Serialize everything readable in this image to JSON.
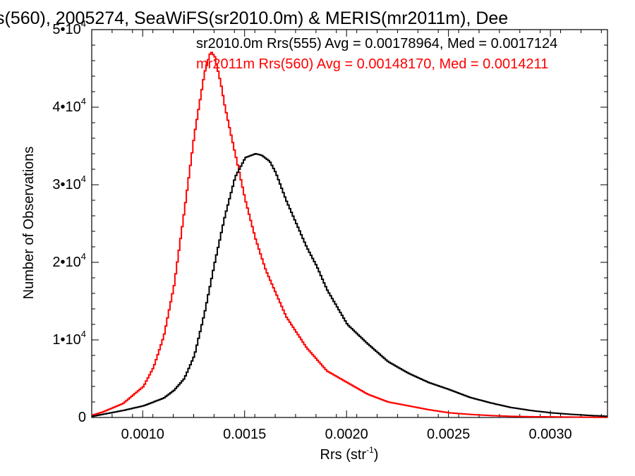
{
  "chart_data": {
    "type": "line",
    "title": "s(560), 2005274, SeaWiFS(sr2010.0m) & MERIS(mr2011m), Dee",
    "xlabel": "Rrs (str",
    "xlabel_sup": "-1",
    "xlabel_close": ")",
    "ylabel": "Number of Observations",
    "xlim": [
      0.00075,
      0.00328
    ],
    "ylim": [
      0,
      50000
    ],
    "x_ticks": [
      {
        "value": 0.001,
        "label": "0.0010"
      },
      {
        "value": 0.0015,
        "label": "0.0015"
      },
      {
        "value": 0.002,
        "label": "0.0020"
      },
      {
        "value": 0.0025,
        "label": "0.0025"
      },
      {
        "value": 0.003,
        "label": "0.0030"
      }
    ],
    "y_ticks": [
      {
        "value": 0,
        "mantissa": "0",
        "exp": ""
      },
      {
        "value": 10000,
        "mantissa": "1•10",
        "exp": "4"
      },
      {
        "value": 20000,
        "mantissa": "2•10",
        "exp": "4"
      },
      {
        "value": 30000,
        "mantissa": "3•10",
        "exp": "4"
      },
      {
        "value": 40000,
        "mantissa": "4•10",
        "exp": "4"
      },
      {
        "value": 50000,
        "mantissa": "5•10",
        "exp": "4"
      }
    ],
    "annotations": [
      {
        "text": "sr2010.0m Rrs(555) Avg = 0.00178964, Med = 0.0017124",
        "color": "#000000"
      },
      {
        "text": "mr2011m Rrs(560) Avg = 0.00148170, Med = 0.0014211",
        "color": "#ff0000"
      }
    ],
    "series": [
      {
        "color": "#000000",
        "x": [
          0.00075,
          0.0008,
          0.0009,
          0.001,
          0.0011,
          0.00115,
          0.0012,
          0.00125,
          0.0013,
          0.00135,
          0.0014,
          0.00145,
          0.0015,
          0.00155,
          0.00158,
          0.00162,
          0.00165,
          0.0017,
          0.00175,
          0.0018,
          0.00185,
          0.0019,
          0.002,
          0.0021,
          0.0022,
          0.0023,
          0.0024,
          0.0025,
          0.0026,
          0.0027,
          0.0028,
          0.0029,
          0.003,
          0.0031,
          0.0032,
          0.00328
        ],
        "y": [
          150,
          400,
          900,
          1500,
          2500,
          3500,
          5000,
          8000,
          13500,
          20000,
          26000,
          31000,
          33500,
          34000,
          33800,
          33000,
          31500,
          28000,
          25000,
          22000,
          19500,
          16500,
          12000,
          9500,
          7200,
          5700,
          4500,
          3600,
          2600,
          1900,
          1300,
          900,
          600,
          400,
          250,
          150
        ]
      },
      {
        "color": "#ff0000",
        "x": [
          0.00075,
          0.0008,
          0.0009,
          0.001,
          0.00105,
          0.0011,
          0.00115,
          0.0012,
          0.00125,
          0.0013,
          0.00133,
          0.00135,
          0.00138,
          0.0014,
          0.00145,
          0.0015,
          0.00155,
          0.0016,
          0.0017,
          0.0018,
          0.0019,
          0.002,
          0.0021,
          0.0022,
          0.0023,
          0.0024,
          0.0025,
          0.0026,
          0.0027,
          0.0028,
          0.0029,
          0.003,
          0.0031,
          0.0032,
          0.00328
        ],
        "y": [
          300,
          700,
          1800,
          4000,
          6500,
          10500,
          17000,
          26500,
          36500,
          44500,
          47200,
          46500,
          43000,
          40000,
          34000,
          28000,
          23000,
          19000,
          13000,
          9000,
          6000,
          4500,
          3000,
          2000,
          1500,
          1000,
          600,
          400,
          250,
          150,
          100,
          80,
          50,
          30,
          20
        ]
      }
    ]
  }
}
